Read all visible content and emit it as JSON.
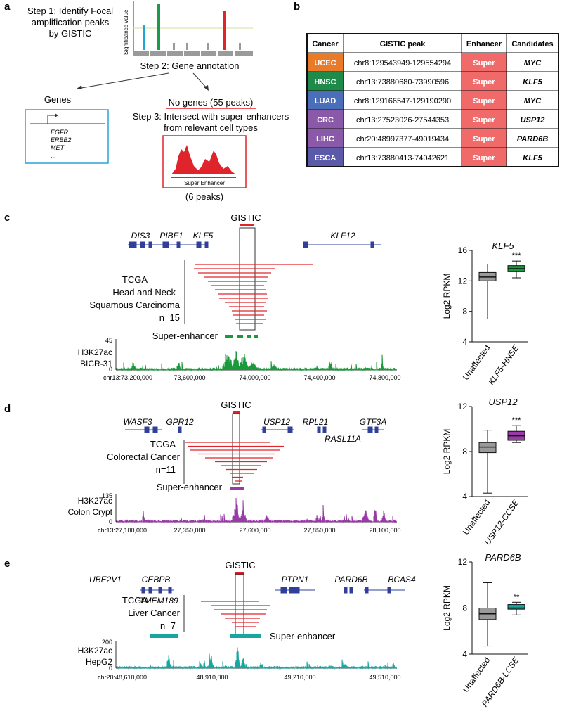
{
  "panel_a": {
    "letter": "a",
    "step1": [
      "Step 1: Identify Focal",
      "amplification peaks",
      "by GISTIC"
    ],
    "yaxis_label": "Significance value",
    "step2": "Step 2: Gene annotation",
    "genes_label": "Genes",
    "genes_list": [
      "EGFR",
      "ERBB2",
      "MET",
      "..."
    ],
    "no_genes": "No genes (55 peaks)",
    "step3": [
      "Step 3: Intersect with super-enhancers",
      "from relevant cell types"
    ],
    "super_enhancer_label": "Super Enhancer",
    "six_peaks": "(6 peaks)",
    "colors": {
      "blue": "#1fa6d8",
      "green": "#1a9a4a",
      "red": "#e0242b",
      "gray": "#9a9a9a"
    }
  },
  "panel_b": {
    "letter": "b",
    "headers": [
      "Cancer",
      "GISTIC peak",
      "Enhancer",
      "Candidates"
    ],
    "rows": [
      {
        "cancer": "UCEC",
        "peak": "chr8:129543949-129554294",
        "enhancer": "Super",
        "candidate": "MYC",
        "color": "#e87a2a"
      },
      {
        "cancer": "HNSC",
        "peak": "chr13:73880680-73990596",
        "enhancer": "Super",
        "candidate": "KLF5",
        "color": "#1f8a4a"
      },
      {
        "cancer": "LUAD",
        "peak": "chr8:129166547-129190290",
        "enhancer": "Super",
        "candidate": "MYC",
        "color": "#4a6fb8"
      },
      {
        "cancer": "CRC",
        "peak": "chr13:27523026-27544353",
        "enhancer": "Super",
        "candidate": "USP12",
        "color": "#8a5aa8"
      },
      {
        "cancer": "LIHC",
        "peak": "chr20:48997377-49019434",
        "enhancer": "Super",
        "candidate": "PARD6B",
        "color": "#8a5aa8"
      },
      {
        "cancer": "ESCA",
        "peak": "chr13:73880413-74042621",
        "enhancer": "Super",
        "candidate": "KLF5",
        "color": "#5a5aa8"
      }
    ],
    "enhancer_color": "#f06a6a"
  },
  "panel_c": {
    "letter": "c",
    "gistic": "GISTIC",
    "genes": [
      "DIS3",
      "PIBF1",
      "KLF5",
      "KLF12"
    ],
    "tcga": [
      "TCGA",
      "Head and Neck",
      "Squamous Carcinoma",
      "n=15"
    ],
    "super_enhancer": "Super-enhancer",
    "chip": [
      "H3K27ac",
      "BICR-31"
    ],
    "chip_max": "45",
    "chip_min": "0",
    "coords": [
      "chr13:73,200,000",
      "73,600,000",
      "74,000,000",
      "74,400,000",
      "74,800,000"
    ],
    "color": "#1a9a3a",
    "box": {
      "gene": "KLF5",
      "ylabel": "Log2 RPKM",
      "yticks": [
        "4",
        "8",
        "12",
        "16"
      ],
      "categories": [
        "Unaffected",
        "KLF5-HNSE"
      ],
      "sig": "***",
      "values": [
        {
          "min": 7.0,
          "q1": 12.0,
          "median": 12.5,
          "q3": 13.1,
          "max": 14.2
        },
        {
          "min": 12.4,
          "q1": 13.2,
          "median": 13.6,
          "q3": 14.0,
          "max": 14.6
        }
      ],
      "ylim": [
        4,
        16
      ]
    }
  },
  "panel_d": {
    "letter": "d",
    "gistic": "GISTIC",
    "genes": [
      "WASF3",
      "GPR12",
      "USP12",
      "RPL21",
      "GTF3A",
      "RASL11A"
    ],
    "tcga": [
      "TCGA",
      "Colorectal Cancer",
      "n=11"
    ],
    "super_enhancer": "Super-enhancer",
    "chip": [
      "H3K27ac",
      "Colon Crypt"
    ],
    "chip_max": "135",
    "chip_min": "0",
    "coords": [
      "chr13:27,100,000",
      "27,350,000",
      "27,600,000",
      "27,850,000",
      "28,100,000"
    ],
    "color": "#9a3aa8",
    "box": {
      "gene": "USP12",
      "ylabel": "Log2 RPKM",
      "yticks": [
        "4",
        "8",
        "12"
      ],
      "categories": [
        "Unaffected",
        "USP12-CCSE"
      ],
      "sig": "***",
      "values": [
        {
          "min": 4.3,
          "q1": 7.9,
          "median": 8.4,
          "q3": 8.8,
          "max": 9.9
        },
        {
          "min": 8.8,
          "q1": 9.0,
          "median": 9.4,
          "q3": 9.8,
          "max": 10.3
        }
      ],
      "ylim": [
        4,
        12
      ]
    }
  },
  "panel_e": {
    "letter": "e",
    "gistic": "GISTIC",
    "genes": [
      "UBE2V1",
      "CEBPB",
      "TMEM189",
      "PTPN1",
      "PARD6B",
      "BCAS4"
    ],
    "tcga": [
      "TCGA",
      "Liver Cancer",
      "n=7"
    ],
    "super_enhancer": "Super-enhancer",
    "chip": [
      "H3K27ac",
      "HepG2"
    ],
    "chip_max": "200",
    "chip_min": "0",
    "coords": [
      "chr20:48,610,000",
      "48,910,000",
      "49,210,000",
      "49,510,000"
    ],
    "color": "#1aa6a0",
    "box": {
      "gene": "PARD6B",
      "ylabel": "Log2 RPKM",
      "yticks": [
        "4",
        "8",
        "12"
      ],
      "categories": [
        "Unaffected",
        "PARD6B-LCSE"
      ],
      "sig": "**",
      "values": [
        {
          "min": 4.7,
          "q1": 7.0,
          "median": 7.5,
          "q3": 8.0,
          "max": 10.2
        },
        {
          "min": 7.4,
          "q1": 7.9,
          "median": 8.0,
          "q3": 8.3,
          "max": 8.5
        }
      ],
      "ylim": [
        4,
        12
      ]
    }
  }
}
